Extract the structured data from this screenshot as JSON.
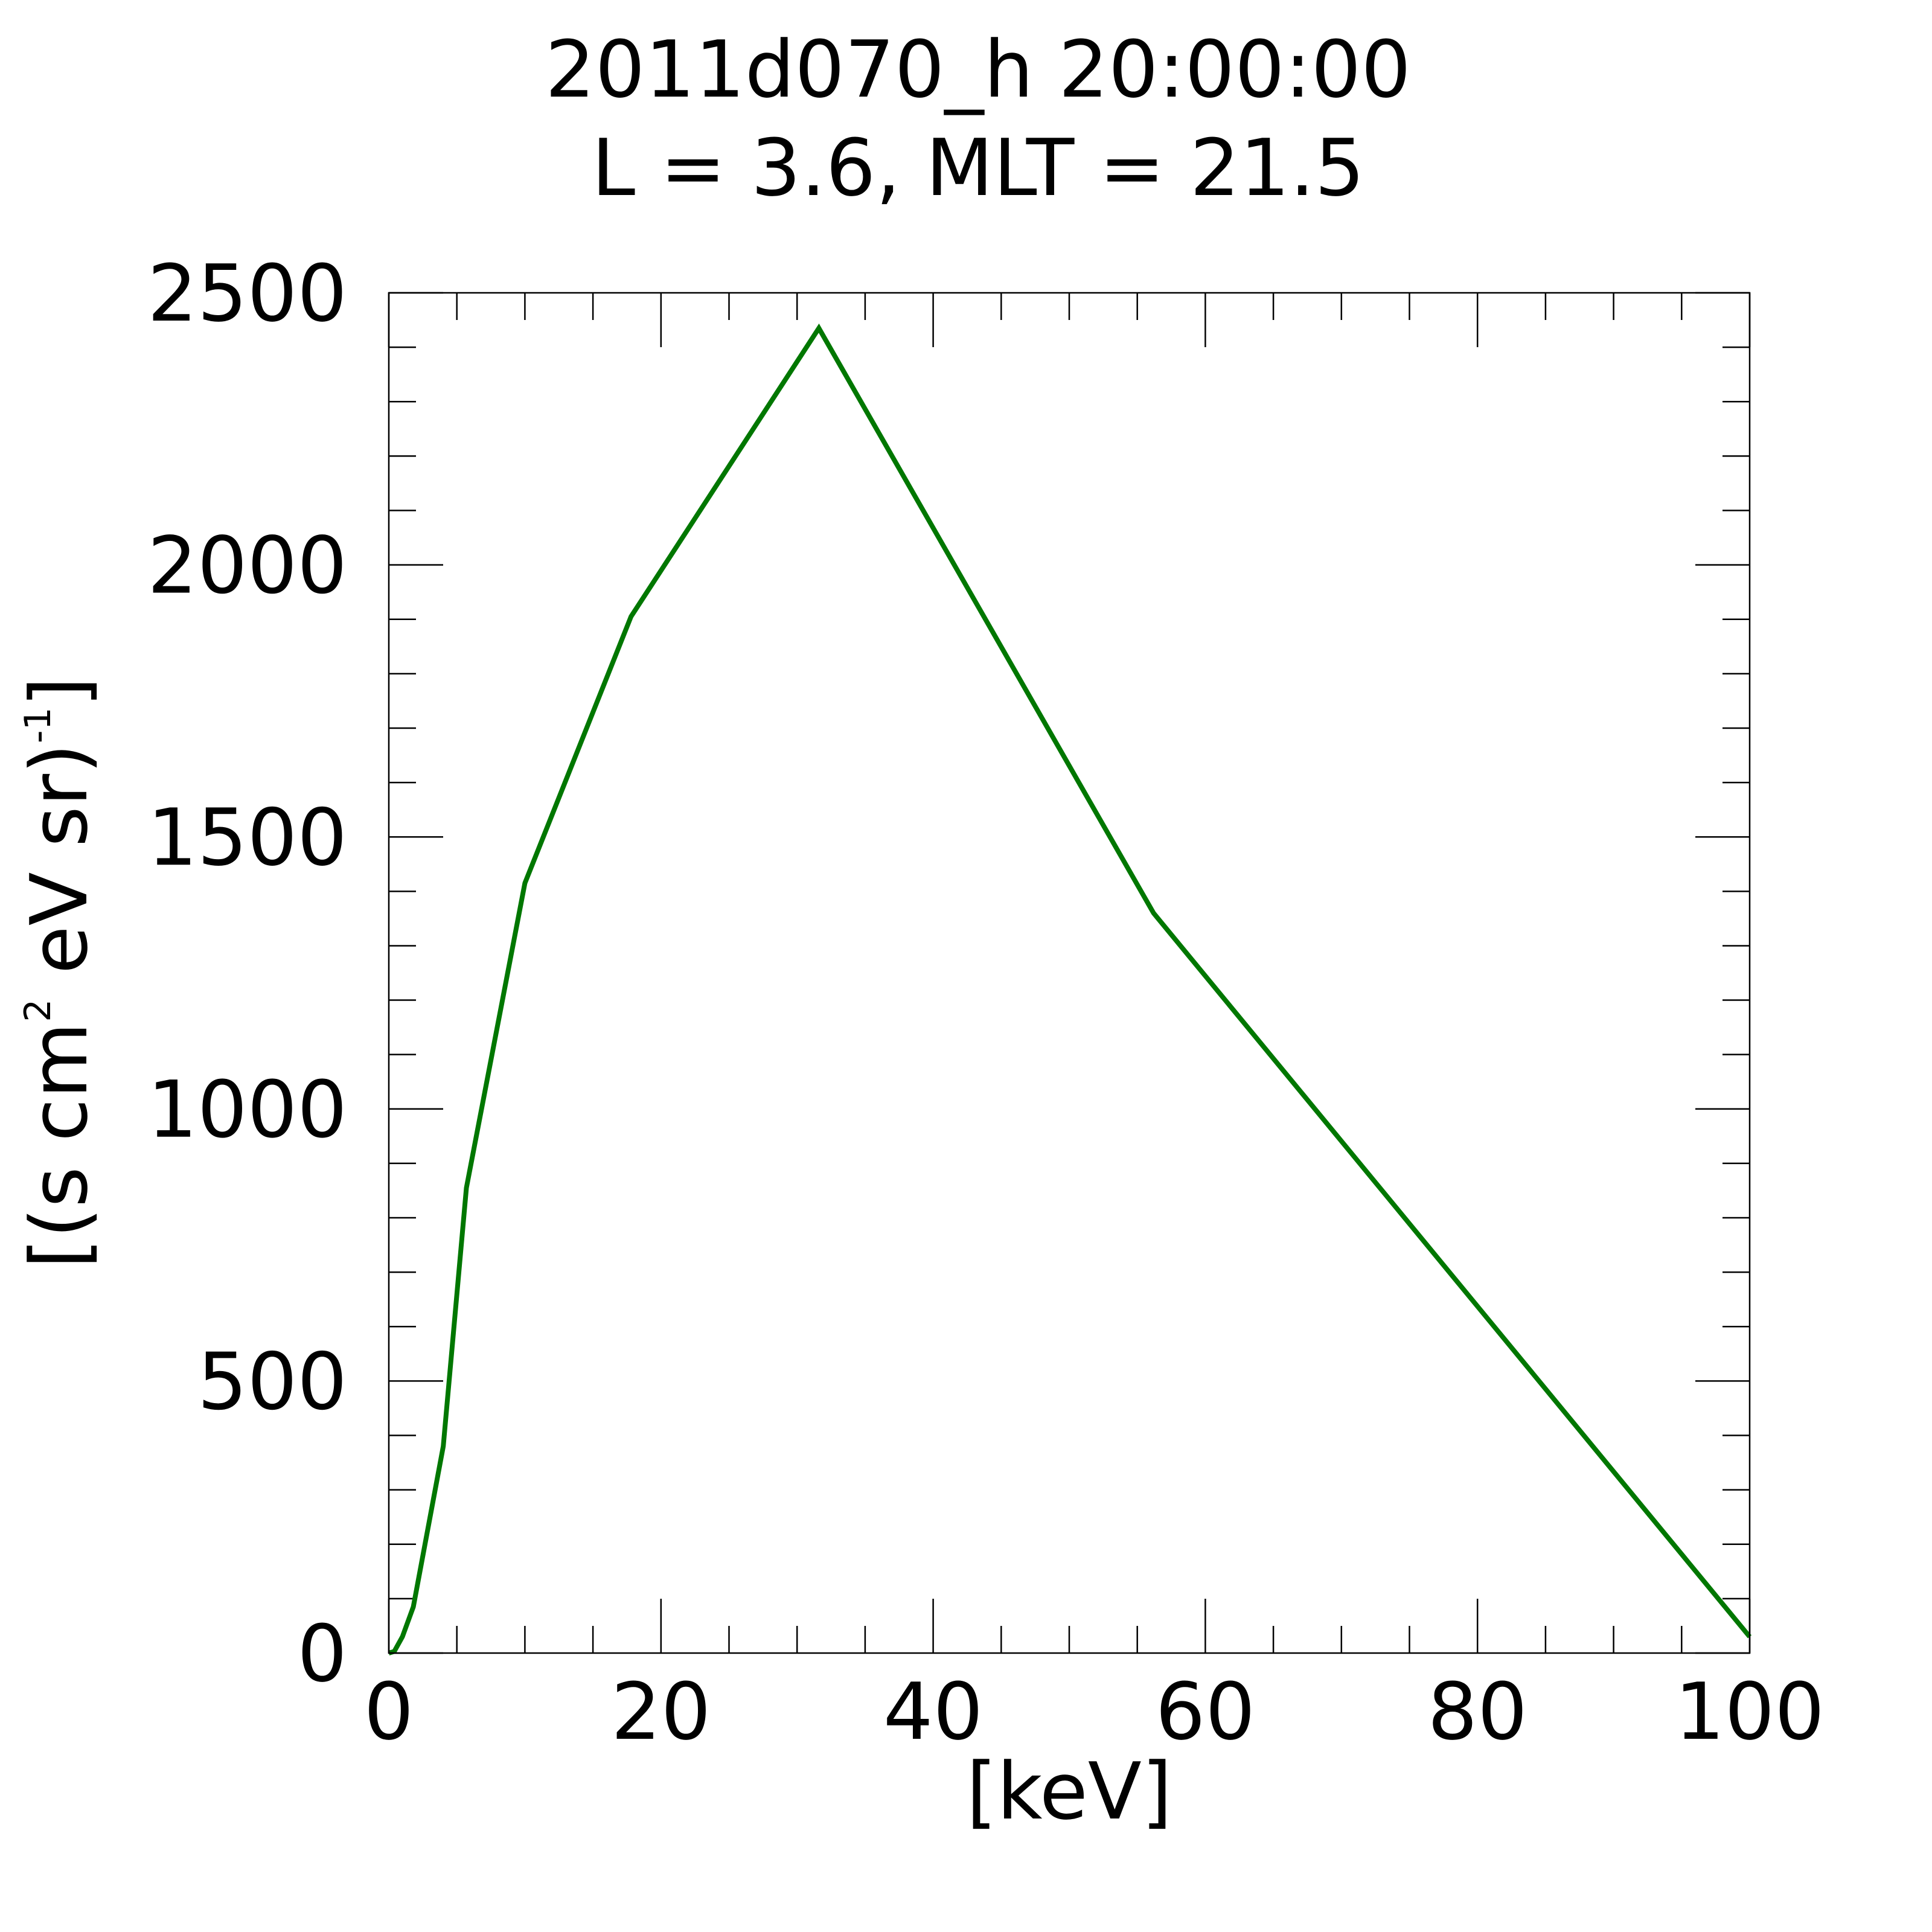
{
  "chart_data": {
    "type": "line",
    "title": "2011d070_h  20:00:00",
    "subtitle": "L = 3.6, MLT = 21.5",
    "xlabel": "[keV]",
    "ylabel": {
      "open": "[(s cm",
      "sup1": "2",
      "mid": " eV sr)",
      "sup2": "-1",
      "close": "]"
    },
    "xlim": [
      0,
      100
    ],
    "ylim": [
      0,
      2500
    ],
    "x_ticks": [
      "0",
      "20",
      "40",
      "60",
      "80",
      "100"
    ],
    "y_ticks": [
      "0",
      "500",
      "1000",
      "1500",
      "2000",
      "2500"
    ],
    "x_major_step": 20,
    "x_minor_step": 5,
    "y_major_step": 500,
    "y_minor_step": 100,
    "grid": false,
    "series": [
      {
        "color": "#007700",
        "x": [
          0,
          0.4,
          1.0,
          1.8,
          4.0,
          5.7,
          10.0,
          17.8,
          31.6,
          56.2,
          100.0
        ],
        "y": [
          0,
          3,
          30,
          85,
          380,
          855,
          1415,
          1905,
          2435,
          1360,
          30
        ]
      }
    ]
  }
}
